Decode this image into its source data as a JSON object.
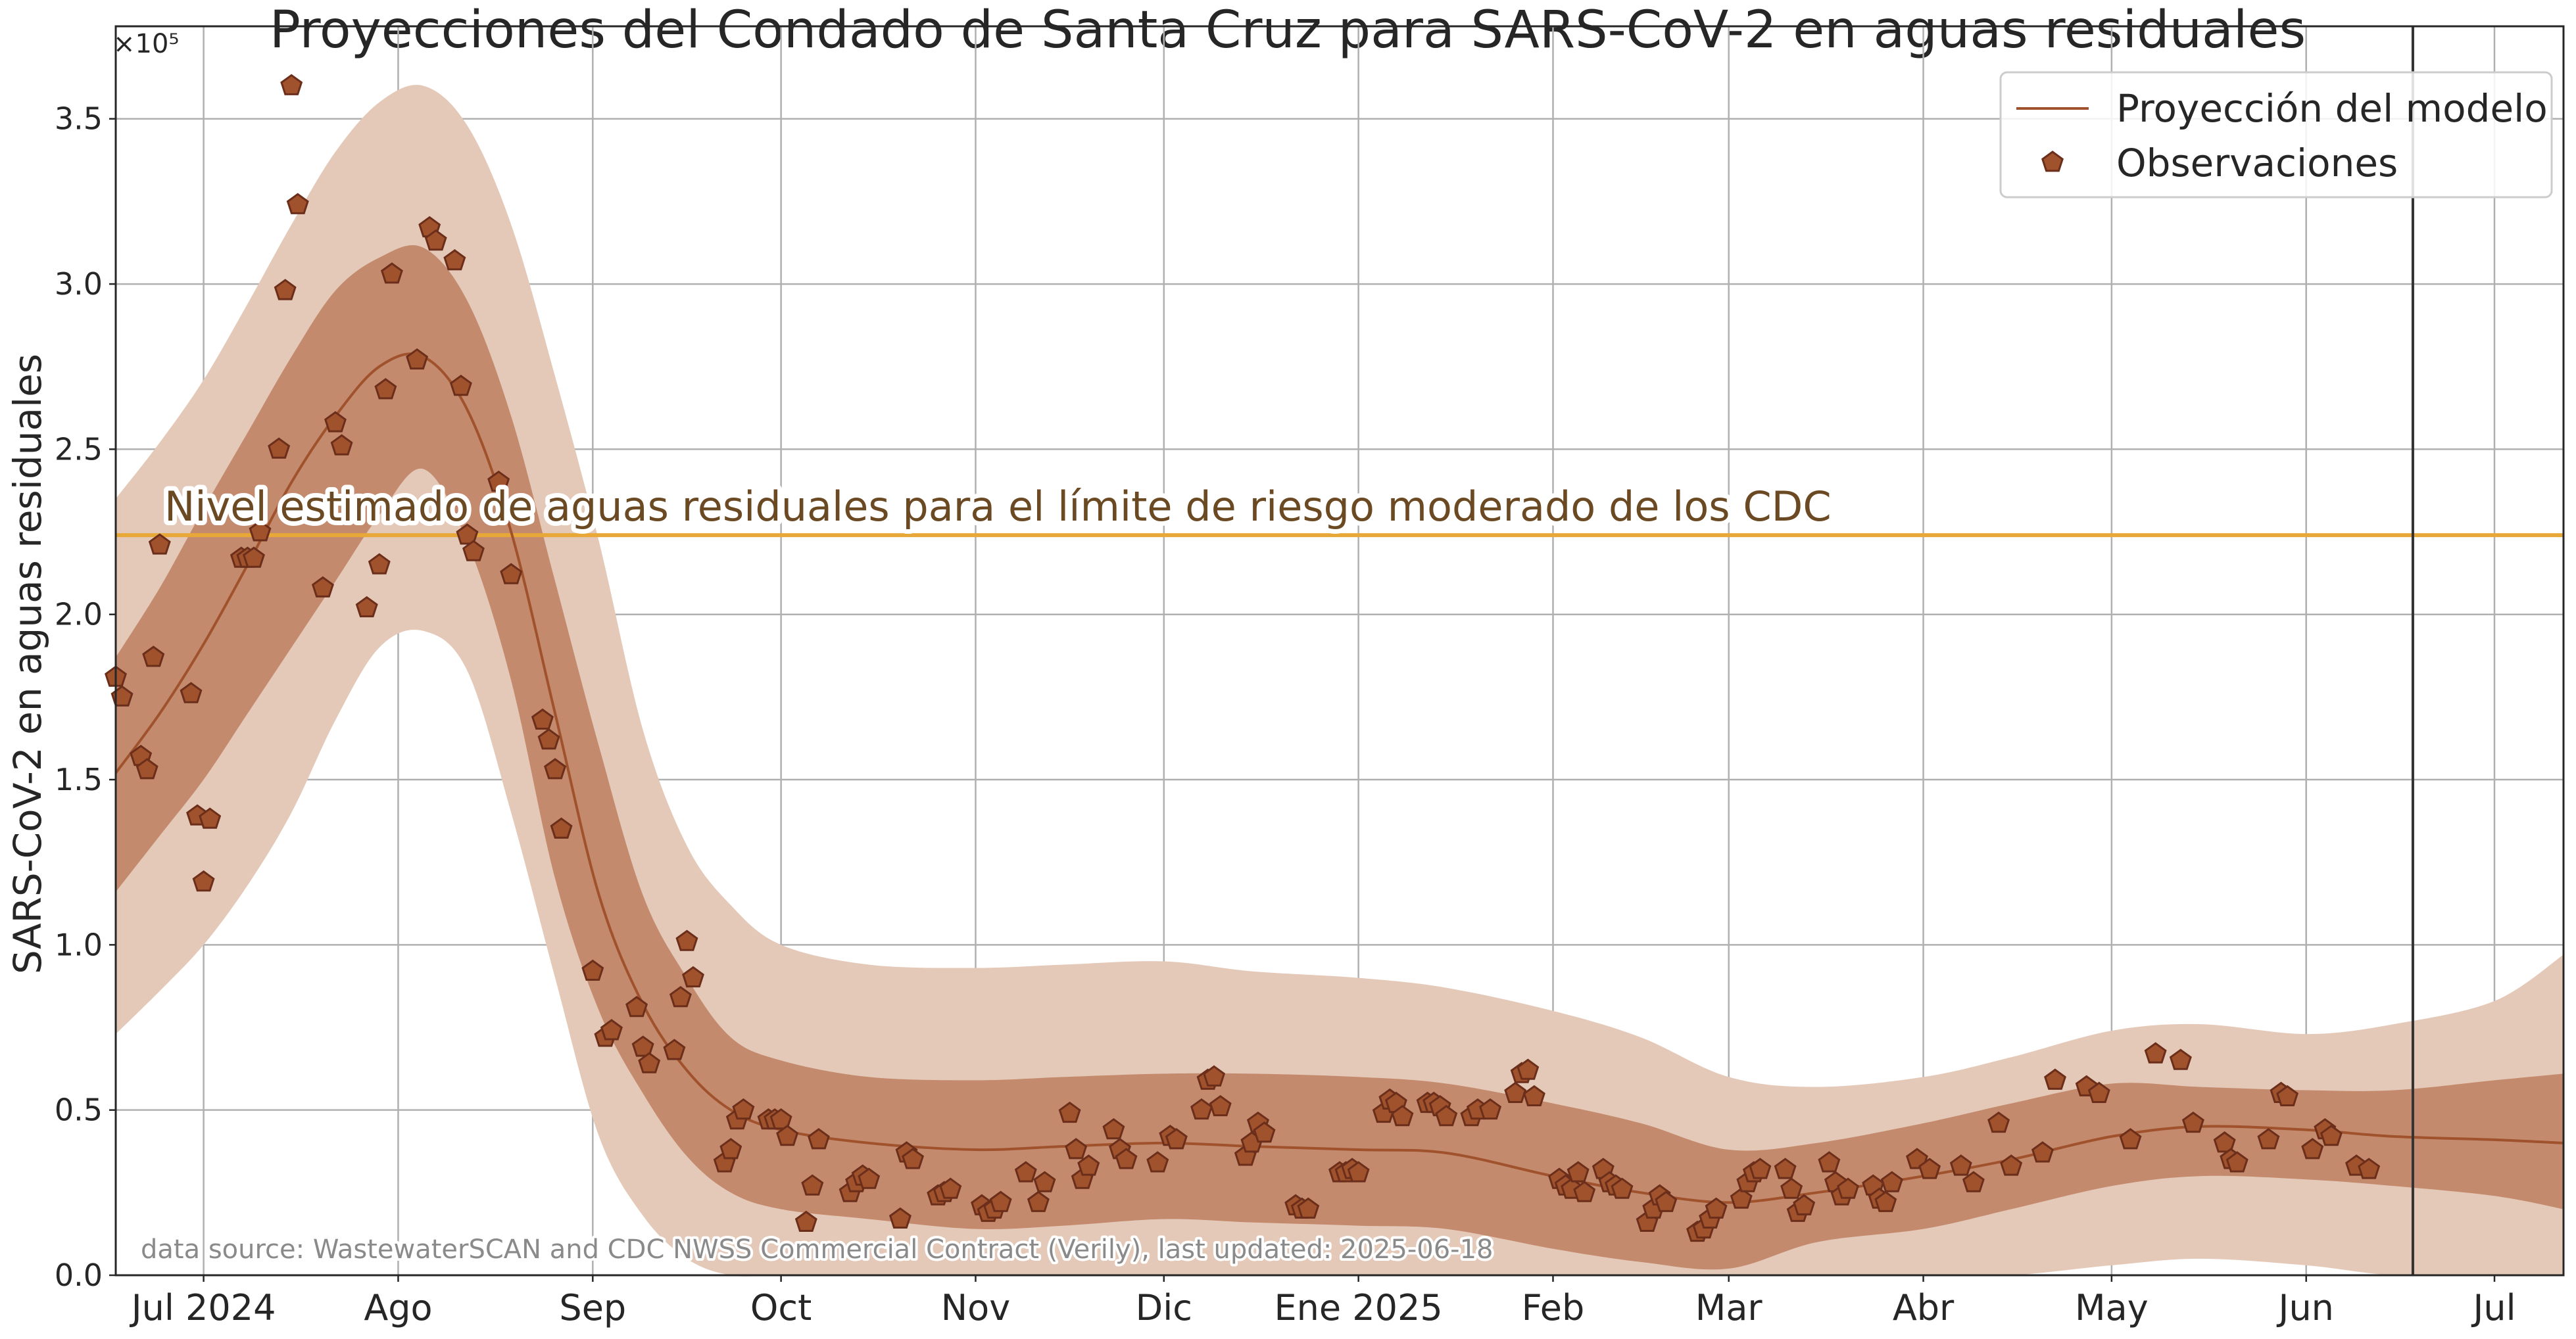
{
  "chart_data": {
    "type": "line",
    "title": "Proyecciones del Condado de Santa Cruz para SARS-CoV-2 en aguas residuales",
    "ylabel": "SARS-CoV-2 en aguas residuales",
    "xlabel": "",
    "y_scale_label": "×10⁵",
    "ylim": [
      0,
      378000
    ],
    "xlim": [
      "2024-06-17",
      "2025-07-12"
    ],
    "y_ticks": [
      {
        "value": 0,
        "label": "0.0"
      },
      {
        "value": 50000,
        "label": "0.5"
      },
      {
        "value": 100000,
        "label": "1.0"
      },
      {
        "value": 150000,
        "label": "1.5"
      },
      {
        "value": 200000,
        "label": "2.0"
      },
      {
        "value": 250000,
        "label": "2.5"
      },
      {
        "value": 300000,
        "label": "3.0"
      },
      {
        "value": 350000,
        "label": "3.5"
      }
    ],
    "x_ticks": [
      {
        "date": "2024-07-01",
        "label": "Jul 2024"
      },
      {
        "date": "2024-08-01",
        "label": "Ago"
      },
      {
        "date": "2024-09-01",
        "label": "Sep"
      },
      {
        "date": "2024-10-01",
        "label": "Oct"
      },
      {
        "date": "2024-11-01",
        "label": "Nov"
      },
      {
        "date": "2024-12-01",
        "label": "Dic"
      },
      {
        "date": "2025-01-01",
        "label": "Ene 2025"
      },
      {
        "date": "2025-02-01",
        "label": "Feb"
      },
      {
        "date": "2025-03-01",
        "label": "Mar"
      },
      {
        "date": "2025-04-01",
        "label": "Abr"
      },
      {
        "date": "2025-05-01",
        "label": "May"
      },
      {
        "date": "2025-06-01",
        "label": "Jun"
      },
      {
        "date": "2025-07-01",
        "label": "Jul"
      }
    ],
    "grid": true,
    "legend_position": "top-right",
    "legend": [
      {
        "name": "Proyección del modelo",
        "kind": "line"
      },
      {
        "name": "Observaciones",
        "kind": "marker"
      }
    ],
    "threshold": {
      "value": 224000,
      "label": "Nivel estimado de aguas residuales para el límite de riesgo moderado de los CDC",
      "color": "#e8a838"
    },
    "current_date_line": "2025-06-18",
    "source_note": "data source: WastewaterSCAN and CDC NWSS Commercial Contract (Verily), last updated: 2025-06-18",
    "colors": {
      "model_line": "#a0522d",
      "band_inner": "#c48a6e",
      "band_outer": "#e5c9b8",
      "marker_fill": "#a0522d",
      "marker_edge": "#6b2e1a",
      "grid": "#b0b0b0",
      "vline": "#333333"
    },
    "series": [
      {
        "name": "Proyección del modelo",
        "points": [
          [
            "2024-06-17",
            152000,
            116000,
            187000,
            73000,
            235000
          ],
          [
            "2024-06-24",
            170000,
            133000,
            208000,
            86000,
            252000
          ],
          [
            "2024-07-01",
            191000,
            150000,
            232000,
            100000,
            271000
          ],
          [
            "2024-07-08",
            215000,
            170000,
            255000,
            118000,
            294000
          ],
          [
            "2024-07-15",
            240000,
            190000,
            278000,
            140000,
            318000
          ],
          [
            "2024-07-22",
            260000,
            210000,
            298000,
            168000,
            340000
          ],
          [
            "2024-07-29",
            275000,
            230000,
            308000,
            190000,
            355000
          ],
          [
            "2024-08-05",
            278000,
            244000,
            311000,
            195000,
            360000
          ],
          [
            "2024-08-12",
            262000,
            222000,
            295000,
            183000,
            348000
          ],
          [
            "2024-08-19",
            225000,
            180000,
            260000,
            140000,
            318000
          ],
          [
            "2024-08-26",
            170000,
            120000,
            210000,
            90000,
            272000
          ],
          [
            "2024-09-02",
            115000,
            80000,
            160000,
            42000,
            222000
          ],
          [
            "2024-09-09",
            82000,
            55000,
            115000,
            18000,
            165000
          ],
          [
            "2024-09-16",
            62000,
            36000,
            90000,
            5000,
            130000
          ],
          [
            "2024-09-23",
            50000,
            25000,
            72000,
            0,
            112000
          ],
          [
            "2024-10-01",
            44000,
            20000,
            65000,
            0,
            100000
          ],
          [
            "2024-10-15",
            40000,
            17000,
            60000,
            0,
            94000
          ],
          [
            "2024-11-01",
            38000,
            14000,
            59000,
            0,
            93000
          ],
          [
            "2024-11-15",
            39000,
            15000,
            60000,
            0,
            94000
          ],
          [
            "2024-12-01",
            40000,
            17000,
            61000,
            0,
            95000
          ],
          [
            "2024-12-15",
            39000,
            16000,
            61000,
            0,
            92000
          ],
          [
            "2025-01-01",
            38000,
            15000,
            60000,
            0,
            90000
          ],
          [
            "2025-01-15",
            37000,
            14000,
            58000,
            0,
            87000
          ],
          [
            "2025-02-01",
            30000,
            8000,
            52000,
            0,
            80000
          ],
          [
            "2025-02-15",
            25000,
            4000,
            46000,
            0,
            72000
          ],
          [
            "2025-03-01",
            22000,
            2000,
            38000,
            0,
            60000
          ],
          [
            "2025-03-15",
            25000,
            10000,
            40000,
            0,
            57000
          ],
          [
            "2025-04-01",
            30000,
            14000,
            46000,
            0,
            60000
          ],
          [
            "2025-04-15",
            35000,
            20000,
            52000,
            0,
            66000
          ],
          [
            "2025-05-01",
            42000,
            27000,
            58000,
            3000,
            74000
          ],
          [
            "2025-05-15",
            45000,
            30000,
            57000,
            5000,
            76000
          ],
          [
            "2025-06-01",
            44000,
            29000,
            56000,
            3000,
            73000
          ],
          [
            "2025-06-15",
            42000,
            27000,
            56000,
            0,
            76000
          ],
          [
            "2025-07-01",
            41000,
            24000,
            59000,
            0,
            83000
          ],
          [
            "2025-07-12",
            40000,
            20000,
            61000,
            0,
            97000
          ]
        ]
      },
      {
        "name": "Observaciones",
        "points": [
          [
            "2024-06-17",
            181000
          ],
          [
            "2024-06-18",
            175000
          ],
          [
            "2024-06-21",
            157000
          ],
          [
            "2024-06-22",
            153000
          ],
          [
            "2024-06-23",
            187000
          ],
          [
            "2024-06-24",
            221000
          ],
          [
            "2024-06-29",
            176000
          ],
          [
            "2024-06-30",
            139000
          ],
          [
            "2024-07-01",
            119000
          ],
          [
            "2024-07-02",
            138000
          ],
          [
            "2024-07-07",
            217000
          ],
          [
            "2024-07-08",
            217000
          ],
          [
            "2024-07-09",
            217000
          ],
          [
            "2024-07-10",
            225000
          ],
          [
            "2024-07-13",
            250000
          ],
          [
            "2024-07-14",
            298000
          ],
          [
            "2024-07-15",
            360000
          ],
          [
            "2024-07-16",
            324000
          ],
          [
            "2024-07-20",
            208000
          ],
          [
            "2024-07-22",
            258000
          ],
          [
            "2024-07-23",
            251000
          ],
          [
            "2024-07-27",
            202000
          ],
          [
            "2024-07-29",
            215000
          ],
          [
            "2024-07-30",
            268000
          ],
          [
            "2024-07-31",
            303000
          ],
          [
            "2024-08-04",
            277000
          ],
          [
            "2024-08-06",
            317000
          ],
          [
            "2024-08-07",
            313000
          ],
          [
            "2024-08-10",
            307000
          ],
          [
            "2024-08-11",
            269000
          ],
          [
            "2024-08-12",
            224000
          ],
          [
            "2024-08-13",
            219000
          ],
          [
            "2024-08-17",
            240000
          ],
          [
            "2024-08-19",
            212000
          ],
          [
            "2024-08-24",
            168000
          ],
          [
            "2024-08-25",
            162000
          ],
          [
            "2024-08-26",
            153000
          ],
          [
            "2024-08-27",
            135000
          ],
          [
            "2024-09-01",
            92000
          ],
          [
            "2024-09-03",
            72000
          ],
          [
            "2024-09-04",
            74000
          ],
          [
            "2024-09-08",
            81000
          ],
          [
            "2024-09-09",
            69000
          ],
          [
            "2024-09-10",
            64000
          ],
          [
            "2024-09-14",
            68000
          ],
          [
            "2024-09-15",
            84000
          ],
          [
            "2024-09-16",
            101000
          ],
          [
            "2024-09-17",
            90000
          ],
          [
            "2024-09-22",
            34000
          ],
          [
            "2024-09-23",
            38000
          ],
          [
            "2024-09-24",
            47000
          ],
          [
            "2024-09-25",
            50000
          ],
          [
            "2024-09-29",
            47000
          ],
          [
            "2024-09-30",
            47000
          ],
          [
            "2024-10-01",
            47000
          ],
          [
            "2024-10-02",
            42000
          ],
          [
            "2024-10-05",
            16000
          ],
          [
            "2024-10-06",
            27000
          ],
          [
            "2024-10-07",
            41000
          ],
          [
            "2024-10-12",
            25000
          ],
          [
            "2024-10-13",
            28000
          ],
          [
            "2024-10-14",
            30000
          ],
          [
            "2024-10-15",
            29000
          ],
          [
            "2024-10-20",
            17000
          ],
          [
            "2024-10-21",
            37000
          ],
          [
            "2024-10-22",
            35000
          ],
          [
            "2024-10-26",
            24000
          ],
          [
            "2024-10-27",
            25000
          ],
          [
            "2024-10-28",
            26000
          ],
          [
            "2024-11-02",
            21000
          ],
          [
            "2024-11-03",
            19000
          ],
          [
            "2024-11-04",
            20000
          ],
          [
            "2024-11-05",
            22000
          ],
          [
            "2024-11-09",
            31000
          ],
          [
            "2024-11-11",
            22000
          ],
          [
            "2024-11-12",
            28000
          ],
          [
            "2024-11-16",
            49000
          ],
          [
            "2024-11-17",
            38000
          ],
          [
            "2024-11-18",
            29000
          ],
          [
            "2024-11-19",
            33000
          ],
          [
            "2024-11-23",
            44000
          ],
          [
            "2024-11-24",
            38000
          ],
          [
            "2024-11-25",
            35000
          ],
          [
            "2024-11-30",
            34000
          ],
          [
            "2024-12-02",
            42000
          ],
          [
            "2024-12-03",
            41000
          ],
          [
            "2024-12-07",
            50000
          ],
          [
            "2024-12-08",
            59000
          ],
          [
            "2024-12-09",
            60000
          ],
          [
            "2024-12-10",
            51000
          ],
          [
            "2024-12-14",
            36000
          ],
          [
            "2024-12-15",
            40000
          ],
          [
            "2024-12-16",
            46000
          ],
          [
            "2024-12-17",
            43000
          ],
          [
            "2024-12-22",
            21000
          ],
          [
            "2024-12-23",
            20000
          ],
          [
            "2024-12-24",
            20000
          ],
          [
            "2024-12-29",
            31000
          ],
          [
            "2024-12-30",
            31000
          ],
          [
            "2024-12-31",
            32000
          ],
          [
            "2025-01-01",
            31000
          ],
          [
            "2025-01-05",
            49000
          ],
          [
            "2025-01-06",
            53000
          ],
          [
            "2025-01-07",
            52000
          ],
          [
            "2025-01-08",
            48000
          ],
          [
            "2025-01-12",
            52000
          ],
          [
            "2025-01-13",
            52000
          ],
          [
            "2025-01-14",
            51000
          ],
          [
            "2025-01-15",
            48000
          ],
          [
            "2025-01-19",
            48000
          ],
          [
            "2025-01-20",
            50000
          ],
          [
            "2025-01-22",
            50000
          ],
          [
            "2025-01-26",
            55000
          ],
          [
            "2025-01-27",
            61000
          ],
          [
            "2025-01-28",
            62000
          ],
          [
            "2025-01-29",
            54000
          ],
          [
            "2025-02-02",
            29000
          ],
          [
            "2025-02-03",
            27000
          ],
          [
            "2025-02-04",
            26000
          ],
          [
            "2025-02-05",
            31000
          ],
          [
            "2025-02-06",
            25000
          ],
          [
            "2025-02-09",
            32000
          ],
          [
            "2025-02-10",
            28000
          ],
          [
            "2025-02-11",
            27000
          ],
          [
            "2025-02-12",
            26000
          ],
          [
            "2025-02-16",
            16000
          ],
          [
            "2025-02-17",
            20000
          ],
          [
            "2025-02-18",
            24000
          ],
          [
            "2025-02-19",
            22000
          ],
          [
            "2025-02-24",
            13000
          ],
          [
            "2025-02-25",
            14000
          ],
          [
            "2025-02-26",
            17000
          ],
          [
            "2025-02-27",
            20000
          ],
          [
            "2025-03-03",
            23000
          ],
          [
            "2025-03-04",
            28000
          ],
          [
            "2025-03-05",
            31000
          ],
          [
            "2025-03-06",
            32000
          ],
          [
            "2025-03-10",
            32000
          ],
          [
            "2025-03-11",
            26000
          ],
          [
            "2025-03-12",
            19000
          ],
          [
            "2025-03-13",
            21000
          ],
          [
            "2025-03-17",
            34000
          ],
          [
            "2025-03-18",
            28000
          ],
          [
            "2025-03-19",
            24000
          ],
          [
            "2025-03-20",
            26000
          ],
          [
            "2025-03-24",
            27000
          ],
          [
            "2025-03-25",
            23000
          ],
          [
            "2025-03-26",
            22000
          ],
          [
            "2025-03-27",
            28000
          ],
          [
            "2025-03-31",
            35000
          ],
          [
            "2025-04-02",
            32000
          ],
          [
            "2025-04-07",
            33000
          ],
          [
            "2025-04-09",
            28000
          ],
          [
            "2025-04-13",
            46000
          ],
          [
            "2025-04-15",
            33000
          ],
          [
            "2025-04-20",
            37000
          ],
          [
            "2025-04-22",
            59000
          ],
          [
            "2025-04-27",
            57000
          ],
          [
            "2025-04-29",
            55000
          ],
          [
            "2025-05-04",
            41000
          ],
          [
            "2025-05-08",
            67000
          ],
          [
            "2025-05-12",
            65000
          ],
          [
            "2025-05-14",
            46000
          ],
          [
            "2025-05-19",
            40000
          ],
          [
            "2025-05-20",
            35000
          ],
          [
            "2025-05-21",
            34000
          ],
          [
            "2025-05-26",
            41000
          ],
          [
            "2025-05-28",
            55000
          ],
          [
            "2025-05-29",
            54000
          ],
          [
            "2025-06-02",
            38000
          ],
          [
            "2025-06-04",
            44000
          ],
          [
            "2025-06-05",
            42000
          ],
          [
            "2025-06-09",
            33000
          ],
          [
            "2025-06-11",
            32000
          ]
        ]
      }
    ]
  }
}
